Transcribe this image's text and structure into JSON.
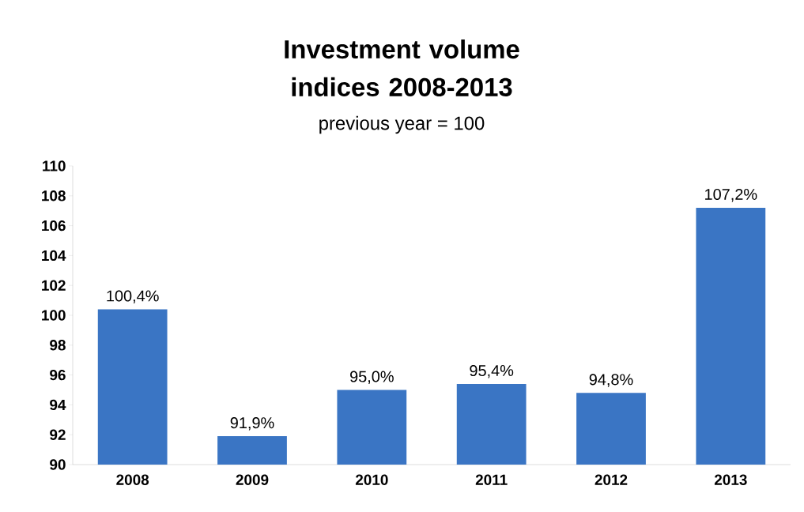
{
  "chart_data": {
    "type": "bar",
    "title": "Investment volume indices 2008-2013",
    "subtitle": "previous year = 100",
    "categories": [
      "2008",
      "2009",
      "2010",
      "2011",
      "2012",
      "2013"
    ],
    "values": [
      100.4,
      91.9,
      95.0,
      95.4,
      94.8,
      107.2
    ],
    "value_labels": [
      "100,4%",
      "91,9%",
      "95,0%",
      "95,4%",
      "94,8%",
      "107,2%"
    ],
    "color": "#3a75c4",
    "ylim": [
      90,
      110
    ],
    "yticks": [
      90,
      92,
      94,
      96,
      98,
      100,
      102,
      104,
      106,
      108,
      110
    ],
    "grid": false
  }
}
